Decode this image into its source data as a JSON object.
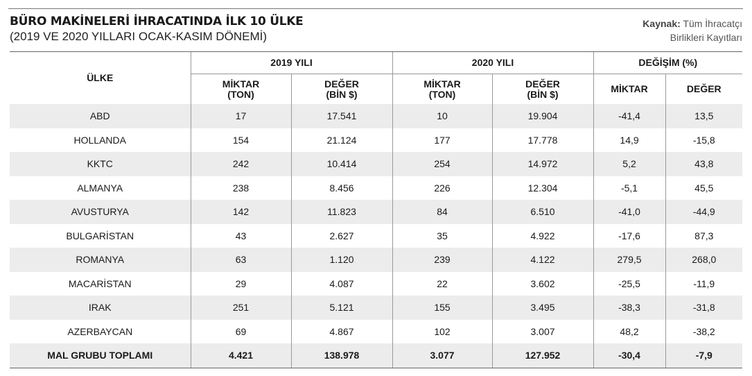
{
  "header": {
    "title": "BÜRO MAKİNELERİ İHRACATINDA İLK 10 ÜLKE",
    "subtitle": "(2019 VE 2020 YILLARI OCAK-KASIM DÖNEMİ)",
    "source_label": "Kaynak:",
    "source_line1": "Tüm İhracatçı",
    "source_line2": "Birlikleri Kayıtları"
  },
  "table": {
    "col_country": "ÜLKE",
    "group_2019": "2019 YILI",
    "group_2020": "2020 YILI",
    "group_change": "DEĞİŞİM (%)",
    "sub_qty": "MİKTAR",
    "sub_qty_unit": "(TON)",
    "sub_val": "DEĞER",
    "sub_val_unit": "(BİN $)",
    "sub_change_qty": "MİKTAR",
    "sub_change_val": "DEĞER",
    "rows": [
      {
        "country": "ABD",
        "q2019": "17",
        "v2019": "17.541",
        "q2020": "10",
        "v2020": "19.904",
        "dq": "-41,4",
        "dv": "13,5"
      },
      {
        "country": "HOLLANDA",
        "q2019": "154",
        "v2019": "21.124",
        "q2020": "177",
        "v2020": "17.778",
        "dq": "14,9",
        "dv": "-15,8"
      },
      {
        "country": "KKTC",
        "q2019": "242",
        "v2019": "10.414",
        "q2020": "254",
        "v2020": "14.972",
        "dq": "5,2",
        "dv": "43,8"
      },
      {
        "country": "ALMANYA",
        "q2019": "238",
        "v2019": "8.456",
        "q2020": "226",
        "v2020": "12.304",
        "dq": "-5,1",
        "dv": "45,5"
      },
      {
        "country": "AVUSTURYA",
        "q2019": "142",
        "v2019": "11.823",
        "q2020": "84",
        "v2020": "6.510",
        "dq": "-41,0",
        "dv": "-44,9"
      },
      {
        "country": "BULGARİSTAN",
        "q2019": "43",
        "v2019": "2.627",
        "q2020": "35",
        "v2020": "4.922",
        "dq": "-17,6",
        "dv": "87,3"
      },
      {
        "country": "ROMANYA",
        "q2019": "63",
        "v2019": "1.120",
        "q2020": "239",
        "v2020": "4.122",
        "dq": "279,5",
        "dv": "268,0"
      },
      {
        "country": "MACARİSTAN",
        "q2019": "29",
        "v2019": "4.087",
        "q2020": "22",
        "v2020": "3.602",
        "dq": "-25,5",
        "dv": "-11,9"
      },
      {
        "country": "IRAK",
        "q2019": "251",
        "v2019": "5.121",
        "q2020": "155",
        "v2020": "3.495",
        "dq": "-38,3",
        "dv": "-31,8"
      },
      {
        "country": "AZERBAYCAN",
        "q2019": "69",
        "v2019": "4.867",
        "q2020": "102",
        "v2020": "3.007",
        "dq": "48,2",
        "dv": "-38,2"
      }
    ],
    "total": {
      "country": "MAL GRUBU TOPLAMI",
      "q2019": "4.421",
      "v2019": "138.978",
      "q2020": "3.077",
      "v2020": "127.952",
      "dq": "-30,4",
      "dv": "-7,9"
    }
  }
}
